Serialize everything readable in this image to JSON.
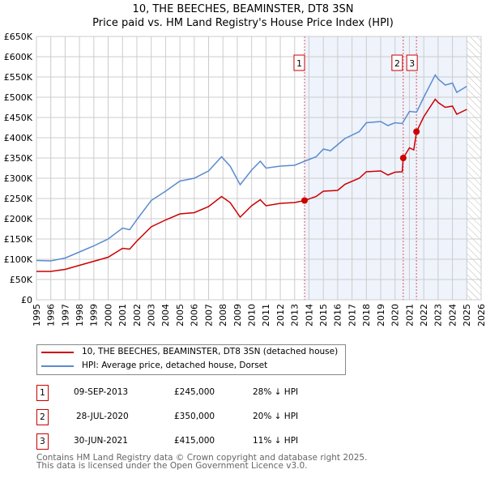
{
  "title": "10, THE BEECHES, BEAMINSTER, DT8 3SN",
  "subtitle": "Price paid vs. HM Land Registry's House Price Index (HPI)",
  "colors": {
    "property": "#cc0000",
    "hpi": "#5b8bd0",
    "shade": "#eef3fc"
  },
  "chart_data": {
    "type": "line",
    "xlim": [
      1995,
      2026
    ],
    "ylim": [
      0,
      650000
    ],
    "x_ticks": [
      "1995",
      "1996",
      "1997",
      "1998",
      "1999",
      "2000",
      "2001",
      "2002",
      "2003",
      "2004",
      "2005",
      "2006",
      "2007",
      "2008",
      "2009",
      "2010",
      "2011",
      "2012",
      "2013",
      "2014",
      "2015",
      "2016",
      "2017",
      "2018",
      "2019",
      "2020",
      "2021",
      "2022",
      "2023",
      "2024",
      "2025",
      "2026"
    ],
    "y_ticks": [
      {
        "v": 0,
        "l": "£0"
      },
      {
        "v": 50000,
        "l": "£50K"
      },
      {
        "v": 100000,
        "l": "£100K"
      },
      {
        "v": 150000,
        "l": "£150K"
      },
      {
        "v": 200000,
        "l": "£200K"
      },
      {
        "v": 250000,
        "l": "£250K"
      },
      {
        "v": 300000,
        "l": "£300K"
      },
      {
        "v": 350000,
        "l": "£350K"
      },
      {
        "v": 400000,
        "l": "£400K"
      },
      {
        "v": 450000,
        "l": "£450K"
      },
      {
        "v": 500000,
        "l": "£500K"
      },
      {
        "v": 550000,
        "l": "£550K"
      },
      {
        "v": 600000,
        "l": "£600K"
      },
      {
        "v": 650000,
        "l": "£650K"
      }
    ],
    "grid": true,
    "shaded_from": 2013.69,
    "hatched_from": 2025.0,
    "series": [
      {
        "name": "10, THE BEECHES, BEAMINSTER, DT8 3SN (detached house)",
        "x": [
          1995,
          1996,
          1997,
          1998,
          1999,
          2000,
          2001,
          2001.5,
          2002,
          2003,
          2004,
          2005,
          2006,
          2007,
          2007.9,
          2008.5,
          2009.2,
          2010,
          2010.6,
          2011,
          2012,
          2013,
          2013.69,
          2014.5,
          2015,
          2016,
          2016.5,
          2017.5,
          2018,
          2019,
          2019.5,
          2020,
          2020.5,
          2020.57,
          2021,
          2021.3,
          2021.5,
          2022,
          2022.8,
          2023,
          2023.5,
          2024,
          2024.3,
          2025
        ],
        "y": [
          70,
          70,
          75,
          85,
          95,
          105,
          127,
          125,
          145,
          180,
          197,
          212,
          215,
          230,
          255,
          240,
          204,
          232,
          247,
          232,
          238,
          240,
          245,
          255,
          268,
          270,
          285,
          300,
          316,
          318,
          308,
          315,
          316,
          350,
          375,
          370,
          415,
          452,
          495,
          487,
          475,
          478,
          458,
          470
        ]
      },
      {
        "name": "HPI: Average price, detached house, Dorset",
        "x": [
          1995,
          1996,
          1997,
          1998,
          1999,
          2000,
          2001,
          2001.5,
          2002,
          2003,
          2004,
          2005,
          2006,
          2007,
          2007.9,
          2008.5,
          2009.2,
          2010,
          2010.6,
          2011,
          2012,
          2013,
          2013.69,
          2014.5,
          2015,
          2015.5,
          2016.5,
          2017.5,
          2018,
          2019,
          2019.5,
          2020,
          2020.5,
          2021,
          2021.5,
          2022,
          2022.8,
          2023,
          2023.5,
          2024,
          2024.3,
          2025
        ],
        "y": [
          97,
          96,
          103,
          118,
          133,
          150,
          177,
          173,
          198,
          245,
          268,
          293,
          300,
          318,
          353,
          330,
          284,
          320,
          342,
          325,
          330,
          332,
          342,
          353,
          372,
          368,
          398,
          415,
          437,
          440,
          430,
          437,
          435,
          465,
          463,
          500,
          555,
          545,
          530,
          535,
          512,
          527
        ]
      }
    ],
    "y_units": "thousand GBP",
    "sales": [
      {
        "label": "1",
        "x": 2013.69,
        "y": 245
      },
      {
        "label": "2",
        "x": 2020.57,
        "y": 350
      },
      {
        "label": "3",
        "x": 2021.49,
        "y": 415
      }
    ]
  },
  "legend": [
    "10, THE BEECHES, BEAMINSTER, DT8 3SN (detached house)",
    "HPI: Average price, detached house, Dorset"
  ],
  "transactions": [
    {
      "num": "1",
      "date": "09-SEP-2013",
      "price": "£245,000",
      "hpi": "28% ↓ HPI"
    },
    {
      "num": "2",
      "date": "28-JUL-2020",
      "price": "£350,000",
      "hpi": "20% ↓ HPI"
    },
    {
      "num": "3",
      "date": "30-JUN-2021",
      "price": "£415,000",
      "hpi": "11% ↓ HPI"
    }
  ],
  "footer": [
    "Contains HM Land Registry data © Crown copyright and database right 2025.",
    "This data is licensed under the Open Government Licence v3.0."
  ]
}
